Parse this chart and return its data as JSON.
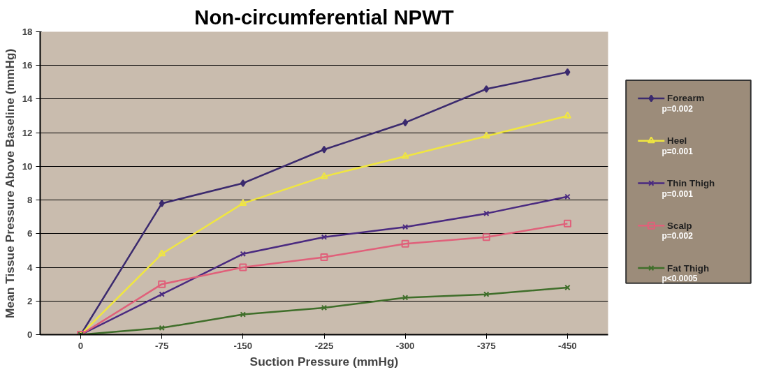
{
  "chart_data": {
    "type": "line",
    "title": "Non-circumferential NPWT",
    "xlabel": "Suction Pressure (mmHg)",
    "ylabel": "Mean Tissue Pressure Above Baseline (mmHg)",
    "categories": [
      "0",
      "-75",
      "-150",
      "-225",
      "-300",
      "-375",
      "-450"
    ],
    "series": [
      {
        "name": "Forearm",
        "color": "#3b2a6e",
        "marker": "diamond",
        "values": [
          0,
          7.8,
          9.0,
          11.0,
          12.6,
          14.6,
          15.6
        ]
      },
      {
        "name": "Heel",
        "color": "#f0e640",
        "marker": "triangle",
        "values": [
          0,
          4.8,
          7.8,
          9.4,
          10.6,
          11.8,
          13.0
        ]
      },
      {
        "name": "Thin Thigh",
        "color": "#4a2a80",
        "marker": "cross",
        "values": [
          0,
          2.4,
          4.8,
          5.8,
          6.4,
          7.2,
          8.2
        ]
      },
      {
        "name": "Scalp",
        "color": "#e0607a",
        "marker": "square",
        "values": [
          0,
          3.0,
          4.0,
          4.6,
          5.4,
          5.8,
          6.6
        ]
      },
      {
        "name": "Fat Thigh",
        "color": "#3f6e2a",
        "marker": "cross",
        "values": [
          0,
          0.4,
          1.2,
          1.6,
          2.2,
          2.4,
          2.8
        ]
      }
    ],
    "annotations": [
      "p=0.002",
      "p=0.001",
      "p=0.001",
      "p=0.002",
      "p<0.0005"
    ],
    "ylim": [
      0,
      18
    ],
    "yticks": [
      0,
      2,
      4,
      6,
      8,
      10,
      12,
      14,
      16,
      18
    ],
    "grid": "y",
    "legend": "right"
  }
}
